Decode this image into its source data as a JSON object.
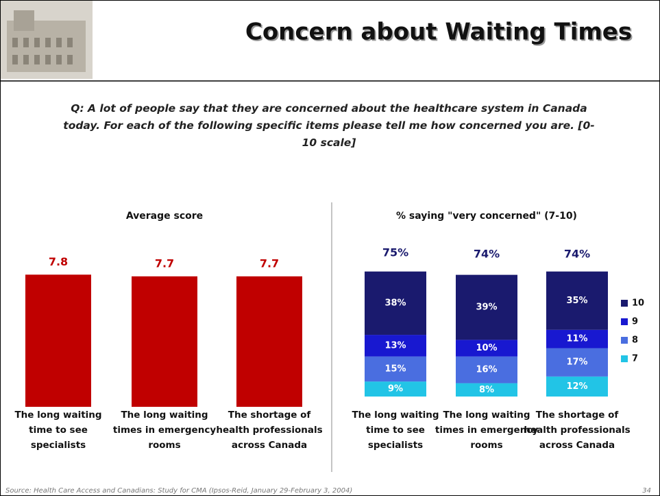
{
  "title": "Concern about Waiting Times",
  "question": "Q:  A lot of people say that they are concerned about the healthcare system in Canada today.  For each of the following specific items please tell me how concerned you are.  [0-10 scale]",
  "source": "Source: Health Care Access and Canadians:  Study for CMA (Ipsos-Reid, January 29-February 3, 2004)",
  "page": "34",
  "chart_data": [
    {
      "type": "bar",
      "title": "Average score",
      "categories": [
        "The long waiting time to see specialists",
        "The long waiting times in emergency rooms",
        "The shortage of health professionals across Canada"
      ],
      "values": [
        7.8,
        7.7,
        7.7
      ],
      "color": "#c00000"
    },
    {
      "type": "stacked_bar",
      "title": "% saying \"very concerned\" (7-10)",
      "categories": [
        "The long waiting time to see specialists",
        "The long waiting times in emergency rooms",
        "The shortage of health professionals across Canada"
      ],
      "series": [
        {
          "name": "7",
          "color": "#22c4e6",
          "values": [
            9,
            8,
            12
          ],
          "value_labels": [
            "9%",
            "8%",
            "12%"
          ]
        },
        {
          "name": "8",
          "color": "#4a6ee0",
          "values": [
            15,
            16,
            17
          ],
          "value_labels": [
            "15%",
            "16%",
            "17%"
          ]
        },
        {
          "name": "9",
          "color": "#1818d0",
          "values": [
            13,
            10,
            11
          ],
          "value_labels": [
            "13%",
            "10%",
            "11%"
          ]
        },
        {
          "name": "10",
          "color": "#1a1a6e",
          "values": [
            38,
            39,
            35
          ],
          "value_labels": [
            "38%",
            "39%",
            "35%"
          ]
        }
      ],
      "totals": {
        "values": [
          75,
          74,
          74
        ],
        "value_labels": [
          "75%",
          "74%",
          "74%"
        ]
      },
      "legend": "right"
    }
  ]
}
